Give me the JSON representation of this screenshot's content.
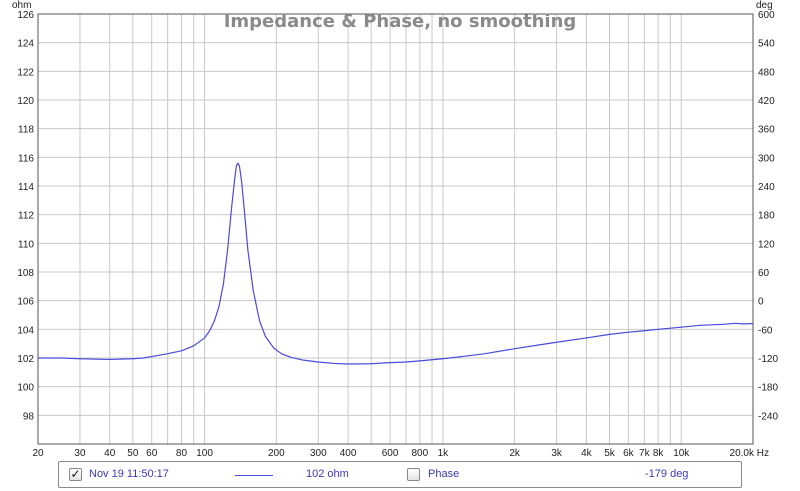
{
  "chart_data": {
    "type": "line",
    "title": "Impedance & Phase, no smoothing",
    "x_scale": "log",
    "xlim": [
      20,
      20000
    ],
    "ylim_left": [
      96,
      126
    ],
    "ylim_right": [
      -300,
      600
    ],
    "left_unit": "ohm",
    "right_unit": "deg",
    "x_unit": "Hz",
    "grid": true,
    "x_tick_labels": [
      {
        "v": 20,
        "t": "20"
      },
      {
        "v": 30,
        "t": "30"
      },
      {
        "v": 40,
        "t": "40"
      },
      {
        "v": 50,
        "t": "50"
      },
      {
        "v": 60,
        "t": "60"
      },
      {
        "v": 80,
        "t": "80"
      },
      {
        "v": 100,
        "t": "100"
      },
      {
        "v": 200,
        "t": "200"
      },
      {
        "v": 300,
        "t": "300"
      },
      {
        "v": 400,
        "t": "400"
      },
      {
        "v": 600,
        "t": "600"
      },
      {
        "v": 800,
        "t": "800"
      },
      {
        "v": 1000,
        "t": "1k"
      },
      {
        "v": 2000,
        "t": "2k"
      },
      {
        "v": 3000,
        "t": "3k"
      },
      {
        "v": 4000,
        "t": "4k"
      },
      {
        "v": 5000,
        "t": "5k"
      },
      {
        "v": 6000,
        "t": "6k"
      },
      {
        "v": 7000,
        "t": "7k"
      },
      {
        "v": 8000,
        "t": "8k"
      },
      {
        "v": 10000,
        "t": "10k"
      },
      {
        "v": 20000,
        "t": "20.0k Hz"
      }
    ],
    "y_left_ticks": [
      98,
      100,
      102,
      104,
      106,
      108,
      110,
      112,
      114,
      116,
      118,
      120,
      122,
      124,
      126
    ],
    "y_right_ticks": [
      -240,
      -180,
      -120,
      -60,
      0,
      60,
      120,
      180,
      240,
      300,
      360,
      420,
      480,
      540,
      600
    ],
    "series": [
      {
        "name": "Nov 19 11:50:17",
        "color": "#4a4adc",
        "axis": "left",
        "points": [
          [
            20,
            102.0
          ],
          [
            25,
            102.0
          ],
          [
            30,
            101.95
          ],
          [
            40,
            101.9
          ],
          [
            50,
            101.95
          ],
          [
            55,
            102.0
          ],
          [
            60,
            102.1
          ],
          [
            70,
            102.3
          ],
          [
            80,
            102.5
          ],
          [
            90,
            102.85
          ],
          [
            100,
            103.4
          ],
          [
            105,
            103.9
          ],
          [
            110,
            104.6
          ],
          [
            115,
            105.6
          ],
          [
            120,
            107.2
          ],
          [
            125,
            109.6
          ],
          [
            130,
            112.6
          ],
          [
            134,
            114.6
          ],
          [
            136,
            115.4
          ],
          [
            138,
            115.6
          ],
          [
            140,
            115.4
          ],
          [
            143,
            114.3
          ],
          [
            147,
            112.2
          ],
          [
            152,
            109.5
          ],
          [
            160,
            106.7
          ],
          [
            170,
            104.6
          ],
          [
            180,
            103.5
          ],
          [
            195,
            102.7
          ],
          [
            210,
            102.3
          ],
          [
            230,
            102.05
          ],
          [
            260,
            101.85
          ],
          [
            300,
            101.72
          ],
          [
            350,
            101.62
          ],
          [
            400,
            101.58
          ],
          [
            500,
            101.6
          ],
          [
            600,
            101.68
          ],
          [
            700,
            101.72
          ],
          [
            800,
            101.8
          ],
          [
            1000,
            101.95
          ],
          [
            1200,
            102.1
          ],
          [
            1500,
            102.3
          ],
          [
            2000,
            102.65
          ],
          [
            2500,
            102.9
          ],
          [
            3000,
            103.1
          ],
          [
            4000,
            103.4
          ],
          [
            5000,
            103.65
          ],
          [
            6000,
            103.8
          ],
          [
            7000,
            103.9
          ],
          [
            8000,
            104.0
          ],
          [
            10000,
            104.15
          ],
          [
            12000,
            104.28
          ],
          [
            15000,
            104.35
          ],
          [
            17000,
            104.42
          ],
          [
            18000,
            104.38
          ],
          [
            20000,
            104.4
          ]
        ]
      }
    ]
  },
  "legend": {
    "series_label": "Nov 19 11:50:17",
    "series_checked": true,
    "series_value": "102 ohm",
    "phase_label": "Phase",
    "phase_checked": false,
    "phase_value": "-179 deg",
    "check_glyph": "✓"
  }
}
